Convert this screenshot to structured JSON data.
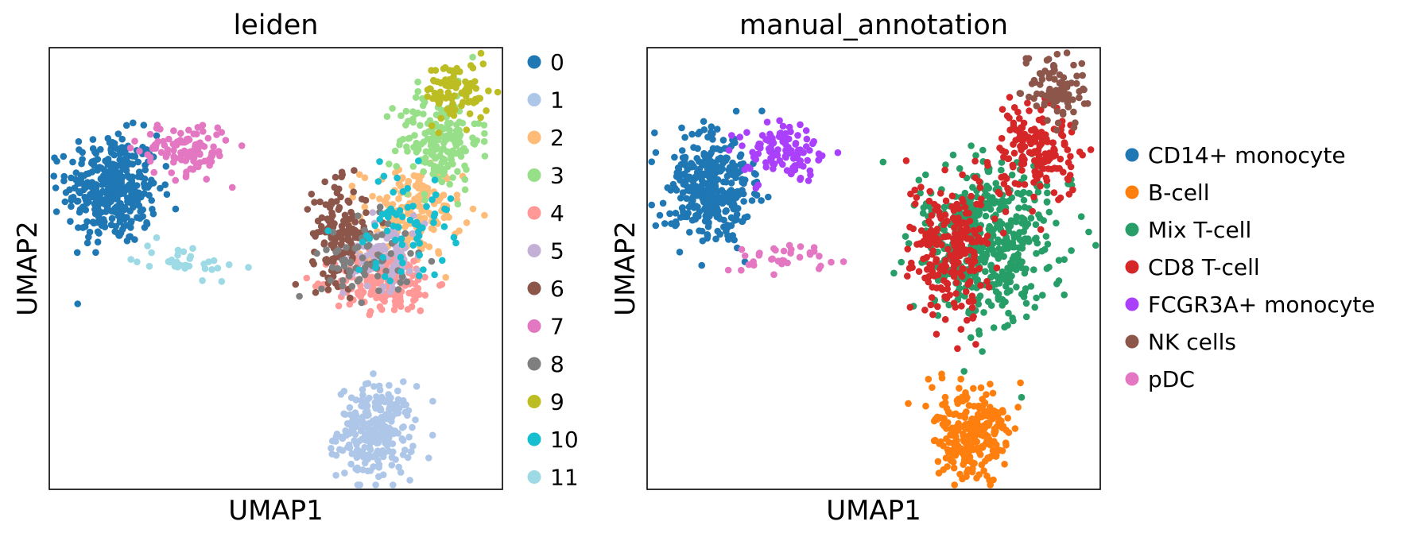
{
  "chart_data": [
    {
      "type": "scatter",
      "title": "leiden",
      "xlabel": "UMAP1",
      "ylabel": "UMAP2",
      "xlim": [
        0,
        10
      ],
      "ylim": [
        0,
        10
      ],
      "grid": false,
      "legend_position": "right",
      "series": [
        {
          "name": "0",
          "color": "#1f77b4",
          "clusters": [
            {
              "cx": 1.4,
              "cy": 6.8,
              "sx": 0.5,
              "sy": 0.62,
              "n": 360
            }
          ]
        },
        {
          "name": "1",
          "color": "#aec7e8",
          "clusters": [
            {
              "cx": 7.2,
              "cy": 1.3,
              "sx": 0.42,
              "sy": 0.52,
              "n": 260
            }
          ]
        },
        {
          "name": "2",
          "color": "#ffbb78",
          "clusters": [
            {
              "cx": 8.0,
              "cy": 6.3,
              "sx": 0.55,
              "sy": 0.5,
              "n": 150
            }
          ]
        },
        {
          "name": "3",
          "color": "#98df8a",
          "clusters": [
            {
              "cx": 8.6,
              "cy": 7.9,
              "sx": 0.45,
              "sy": 0.55,
              "n": 180
            }
          ]
        },
        {
          "name": "4",
          "color": "#ff9896",
          "clusters": [
            {
              "cx": 7.4,
              "cy": 4.7,
              "sx": 0.55,
              "sy": 0.35,
              "n": 190
            }
          ]
        },
        {
          "name": "5",
          "color": "#c5b0d5",
          "clusters": [
            {
              "cx": 7.4,
              "cy": 5.4,
              "sx": 0.45,
              "sy": 0.4,
              "n": 90
            }
          ]
        },
        {
          "name": "6",
          "color": "#8c564b",
          "clusters": [
            {
              "cx": 6.4,
              "cy": 5.8,
              "sx": 0.3,
              "sy": 0.55,
              "n": 150
            }
          ]
        },
        {
          "name": "7",
          "color": "#e377c2",
          "clusters": [
            {
              "cx": 3.0,
              "cy": 7.7,
              "sx": 0.5,
              "sy": 0.3,
              "n": 110
            }
          ]
        },
        {
          "name": "8",
          "color": "#7f7f7f",
          "clusters": [
            {
              "cx": 7.0,
              "cy": 5.2,
              "sx": 0.5,
              "sy": 0.45,
              "n": 70
            }
          ]
        },
        {
          "name": "9",
          "color": "#bcbd22",
          "clusters": [
            {
              "cx": 9.0,
              "cy": 9.0,
              "sx": 0.35,
              "sy": 0.35,
              "n": 90
            }
          ]
        },
        {
          "name": "10",
          "color": "#17becf",
          "clusters": [
            {
              "cx": 7.8,
              "cy": 6.0,
              "sx": 0.55,
              "sy": 0.6,
              "n": 70
            }
          ]
        },
        {
          "name": "11",
          "color": "#9edae5",
          "clusters": [
            {
              "cx": 3.0,
              "cy": 5.2,
              "sx": 0.55,
              "sy": 0.2,
              "n": 35
            }
          ]
        }
      ]
    },
    {
      "type": "scatter",
      "title": "manual_annotation",
      "xlabel": "UMAP1",
      "ylabel": "UMAP2",
      "xlim": [
        0,
        10
      ],
      "ylim": [
        0,
        10
      ],
      "grid": false,
      "legend_position": "right",
      "series": [
        {
          "name": "CD14+ monocyte",
          "color": "#1f77b4",
          "clusters": [
            {
              "cx": 1.4,
              "cy": 6.8,
              "sx": 0.5,
              "sy": 0.62,
              "n": 360
            }
          ]
        },
        {
          "name": "B-cell",
          "color": "#ff7f0e",
          "clusters": [
            {
              "cx": 7.2,
              "cy": 1.3,
              "sx": 0.42,
              "sy": 0.52,
              "n": 260
            }
          ]
        },
        {
          "name": "Mix T-cell",
          "color": "#279e68",
          "clusters": [
            {
              "cx": 7.5,
              "cy": 5.6,
              "sx": 0.75,
              "sy": 0.9,
              "n": 480
            }
          ]
        },
        {
          "name": "CD8 T-cell",
          "color": "#d62728",
          "clusters": [
            {
              "cx": 6.7,
              "cy": 5.5,
              "sx": 0.45,
              "sy": 0.75,
              "n": 230
            },
            {
              "cx": 8.6,
              "cy": 7.6,
              "sx": 0.45,
              "sy": 0.55,
              "n": 170
            }
          ]
        },
        {
          "name": "FCGR3A+ monocyte",
          "color": "#aa40fc",
          "clusters": [
            {
              "cx": 3.0,
              "cy": 7.7,
              "sx": 0.5,
              "sy": 0.3,
              "n": 110
            }
          ]
        },
        {
          "name": "NK cells",
          "color": "#8c564b",
          "clusters": [
            {
              "cx": 9.0,
              "cy": 9.0,
              "sx": 0.35,
              "sy": 0.35,
              "n": 90
            }
          ]
        },
        {
          "name": "pDC",
          "color": "#e377c2",
          "clusters": [
            {
              "cx": 3.0,
              "cy": 5.2,
              "sx": 0.55,
              "sy": 0.2,
              "n": 35
            }
          ]
        }
      ]
    }
  ]
}
